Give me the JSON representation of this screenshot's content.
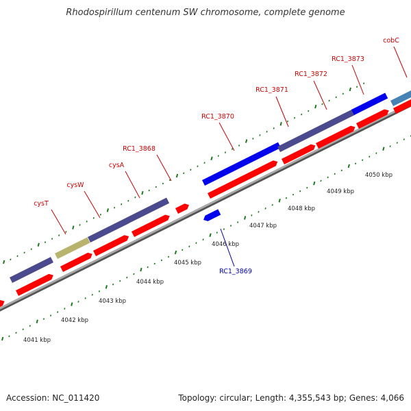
{
  "title": "Rhodospirillum centenum SW chromosome, complete genome",
  "footer": {
    "accession": "Accession: NC_011420",
    "topology": "Topology: circular; Length: 4,355,543 bp; Genes: 4,066"
  },
  "colors": {
    "cds": "#ff0000",
    "gene_purple": "#4b4a8e",
    "gene_olive": "#b8b36d",
    "gene_blue": "#0000ee",
    "gene_lightblue": "#4682b4",
    "label_red": "#cc0000",
    "label_blue": "#0000aa",
    "backbone": "#888888",
    "tick": "#1a7a1a"
  },
  "gene_labels": [
    {
      "id": "cysT",
      "text": "cysT",
      "color": "red"
    },
    {
      "id": "cysW",
      "text": "cysW",
      "color": "red"
    },
    {
      "id": "cysA",
      "text": "cysA",
      "color": "red"
    },
    {
      "id": "RC1_3868",
      "text": "RC1_3868",
      "color": "red"
    },
    {
      "id": "RC1_3870",
      "text": "RC1_3870",
      "color": "red"
    },
    {
      "id": "RC1_3871",
      "text": "RC1_3871",
      "color": "red"
    },
    {
      "id": "RC1_3872",
      "text": "RC1_3872",
      "color": "red"
    },
    {
      "id": "RC1_3873",
      "text": "RC1_3873",
      "color": "red"
    },
    {
      "id": "cobC",
      "text": "cobC",
      "color": "red"
    },
    {
      "id": "RC1_3869",
      "text": "RC1_3869",
      "color": "blue"
    }
  ],
  "kbp_labels": [
    "4041 kbp",
    "4042 kbp",
    "4043 kbp",
    "4044 kbp",
    "4045 kbp",
    "4046 kbp",
    "4047 kbp",
    "4048 kbp",
    "4049 kbp",
    "4050 kbp"
  ]
}
